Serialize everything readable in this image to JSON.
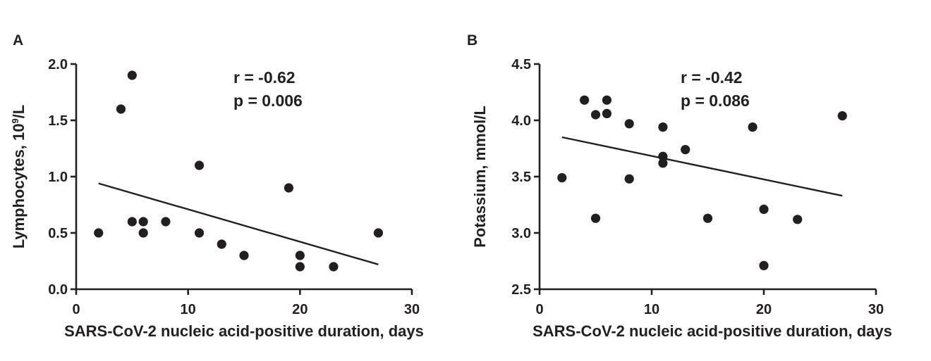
{
  "chart_data": [
    {
      "type": "scatter",
      "panel": "A",
      "xlabel": "SARS-CoV-2 nucleic acid-positive duration, days",
      "ylabel": "Lymphocytes, 10",
      "ylabel_superscript": "9",
      "ylabel_suffix": "/L",
      "xlim": [
        0,
        30
      ],
      "ylim": [
        0.0,
        2.0
      ],
      "xticks": [
        0,
        10,
        20,
        30
      ],
      "yticks": [
        0.0,
        0.5,
        1.0,
        1.5,
        2.0
      ],
      "xtick_labels": [
        "0",
        "10",
        "20",
        "30"
      ],
      "ytick_labels": [
        "0.0",
        "0.5",
        "1.0",
        "1.5",
        "2.0"
      ],
      "stat_r": "r = -0.62",
      "stat_p": "p = 0.006",
      "grid": false,
      "points": [
        {
          "x": 2,
          "y": 0.5
        },
        {
          "x": 4,
          "y": 1.6
        },
        {
          "x": 5,
          "y": 1.9
        },
        {
          "x": 5,
          "y": 0.6
        },
        {
          "x": 6,
          "y": 0.6
        },
        {
          "x": 6,
          "y": 0.5
        },
        {
          "x": 8,
          "y": 0.6
        },
        {
          "x": 11,
          "y": 1.1
        },
        {
          "x": 11,
          "y": 0.5
        },
        {
          "x": 13,
          "y": 0.4
        },
        {
          "x": 15,
          "y": 0.3
        },
        {
          "x": 19,
          "y": 0.9
        },
        {
          "x": 20,
          "y": 0.3
        },
        {
          "x": 20,
          "y": 0.2
        },
        {
          "x": 23,
          "y": 0.2
        },
        {
          "x": 27,
          "y": 0.5
        }
      ],
      "fit_line": {
        "x": [
          2,
          27
        ],
        "y": [
          0.94,
          0.22
        ]
      }
    },
    {
      "type": "scatter",
      "panel": "B",
      "xlabel": "SARS-CoV-2 nucleic acid-positive duration, days",
      "ylabel": "Potassium, mmol/L",
      "ylabel_superscript": "",
      "ylabel_suffix": "",
      "xlim": [
        0,
        30
      ],
      "ylim": [
        2.5,
        4.5
      ],
      "xticks": [
        0,
        10,
        20,
        30
      ],
      "yticks": [
        2.5,
        3.0,
        3.5,
        4.0,
        4.5
      ],
      "xtick_labels": [
        "0",
        "10",
        "20",
        "30"
      ],
      "ytick_labels": [
        "2.5",
        "3.0",
        "3.5",
        "4.0",
        "4.5"
      ],
      "stat_r": "r = -0.42",
      "stat_p": "p = 0.086",
      "grid": false,
      "points": [
        {
          "x": 2,
          "y": 3.49
        },
        {
          "x": 4,
          "y": 4.18
        },
        {
          "x": 5,
          "y": 4.05
        },
        {
          "x": 5,
          "y": 3.13
        },
        {
          "x": 6,
          "y": 4.18
        },
        {
          "x": 6,
          "y": 4.06
        },
        {
          "x": 8,
          "y": 3.97
        },
        {
          "x": 8,
          "y": 3.48
        },
        {
          "x": 11,
          "y": 3.94
        },
        {
          "x": 11,
          "y": 3.68
        },
        {
          "x": 11,
          "y": 3.62
        },
        {
          "x": 13,
          "y": 3.74
        },
        {
          "x": 15,
          "y": 3.13
        },
        {
          "x": 19,
          "y": 3.94
        },
        {
          "x": 20,
          "y": 3.21
        },
        {
          "x": 20,
          "y": 2.71
        },
        {
          "x": 23,
          "y": 3.12
        },
        {
          "x": 27,
          "y": 4.04
        }
      ],
      "fit_line": {
        "x": [
          2,
          27
        ],
        "y": [
          3.85,
          3.33
        ]
      }
    }
  ]
}
